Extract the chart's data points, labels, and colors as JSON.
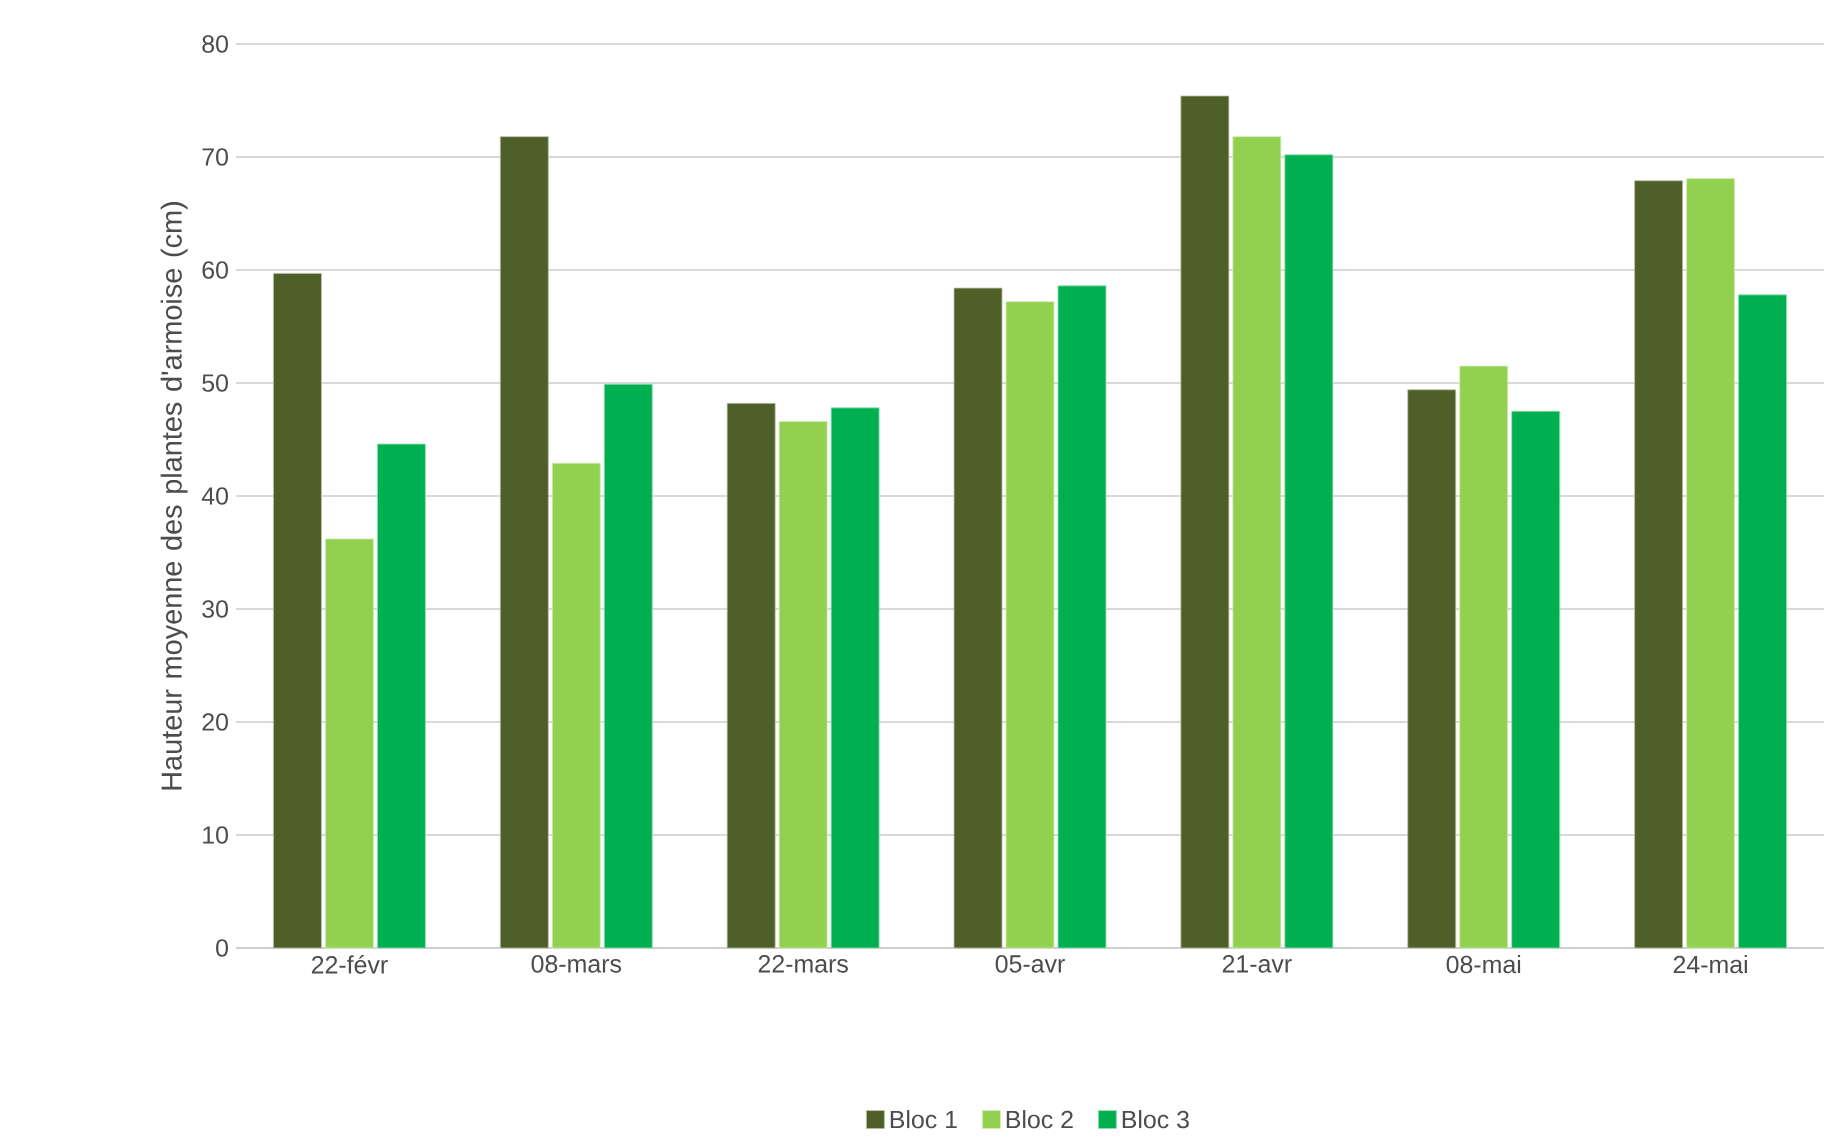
{
  "chart_data": {
    "type": "bar",
    "ylabel": "Hauteur moyenne des plantes d'armoise (cm)",
    "categories": [
      "22-févr",
      "08-mars",
      "22-mars",
      "05-avr",
      "21-avr",
      "08-mai",
      "24-mai"
    ],
    "series": [
      {
        "name": "Bloc 1",
        "color": "#4e5f27",
        "values": [
          59.7,
          71.8,
          48.2,
          58.4,
          75.4,
          49.4,
          67.9
        ]
      },
      {
        "name": "Bloc 2",
        "color": "#92d050",
        "values": [
          36.2,
          42.9,
          46.6,
          57.2,
          71.8,
          51.5,
          68.1
        ]
      },
      {
        "name": "Bloc 3",
        "color": "#00b050",
        "values": [
          44.6,
          49.9,
          47.8,
          58.6,
          70.2,
          47.5,
          57.8
        ]
      }
    ],
    "ylim": [
      0,
      80
    ],
    "yticks": [
      0,
      10,
      20,
      30,
      40,
      50,
      60,
      70,
      80
    ],
    "grid": "y",
    "legend": "bottom"
  }
}
